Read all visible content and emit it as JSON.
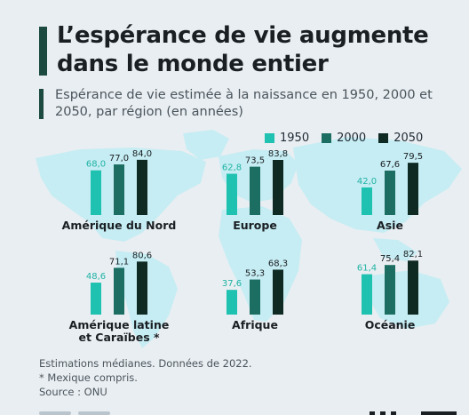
{
  "header": {
    "title": "L’espérance de vie augmente dans le monde entier",
    "subtitle": "Espérance de vie estimée à la naissance en 1950, 2000 et 2050, par région (en années)"
  },
  "colors": {
    "1950": "#1fc1b1",
    "2000": "#1c6e62",
    "2050": "#0e2a22",
    "map": "#c6edf3",
    "background": "#e9eef2"
  },
  "legend": [
    {
      "label": "1950",
      "color": "#1fc1b1"
    },
    {
      "label": "2000",
      "color": "#1c6e62"
    },
    {
      "label": "2050",
      "color": "#0e2a22"
    }
  ],
  "chart_data": {
    "type": "bar",
    "title": "L’espérance de vie augmente dans le monde entier",
    "subtitle": "Espérance de vie estimée à la naissance en 1950, 2000 et 2050, par région (en années)",
    "series_names": [
      "1950",
      "2000",
      "2050"
    ],
    "groups": [
      {
        "label": "Amérique du Nord",
        "values": [
          68.0,
          77.0,
          84.0
        ],
        "value_labels": [
          "68,0",
          "77,0",
          "84,0"
        ]
      },
      {
        "label": "Europe",
        "values": [
          62.8,
          73.5,
          83.8
        ],
        "value_labels": [
          "62,8",
          "73,5",
          "83,8"
        ]
      },
      {
        "label": "Asie",
        "values": [
          42.0,
          67.6,
          79.5
        ],
        "value_labels": [
          "42,0",
          "67,6",
          "79,5"
        ]
      },
      {
        "label": "Amérique latine et Caraïbes *",
        "values": [
          48.6,
          71.1,
          80.6
        ],
        "value_labels": [
          "48,6",
          "71,1",
          "80,6"
        ]
      },
      {
        "label": "Afrique",
        "values": [
          37.6,
          53.3,
          68.3
        ],
        "value_labels": [
          "37,6",
          "53,3",
          "68,3"
        ]
      },
      {
        "label": "Océanie",
        "values": [
          61.4,
          75.4,
          82.1
        ],
        "value_labels": [
          "61,4",
          "75,4",
          "82,1"
        ]
      }
    ],
    "legend_position": "top-right",
    "grid": false
  },
  "footnotes": {
    "line1": "Estimations médianes. Données de 2022.",
    "line2": "* Mexique compris.",
    "line3": "Source : ONU"
  }
}
